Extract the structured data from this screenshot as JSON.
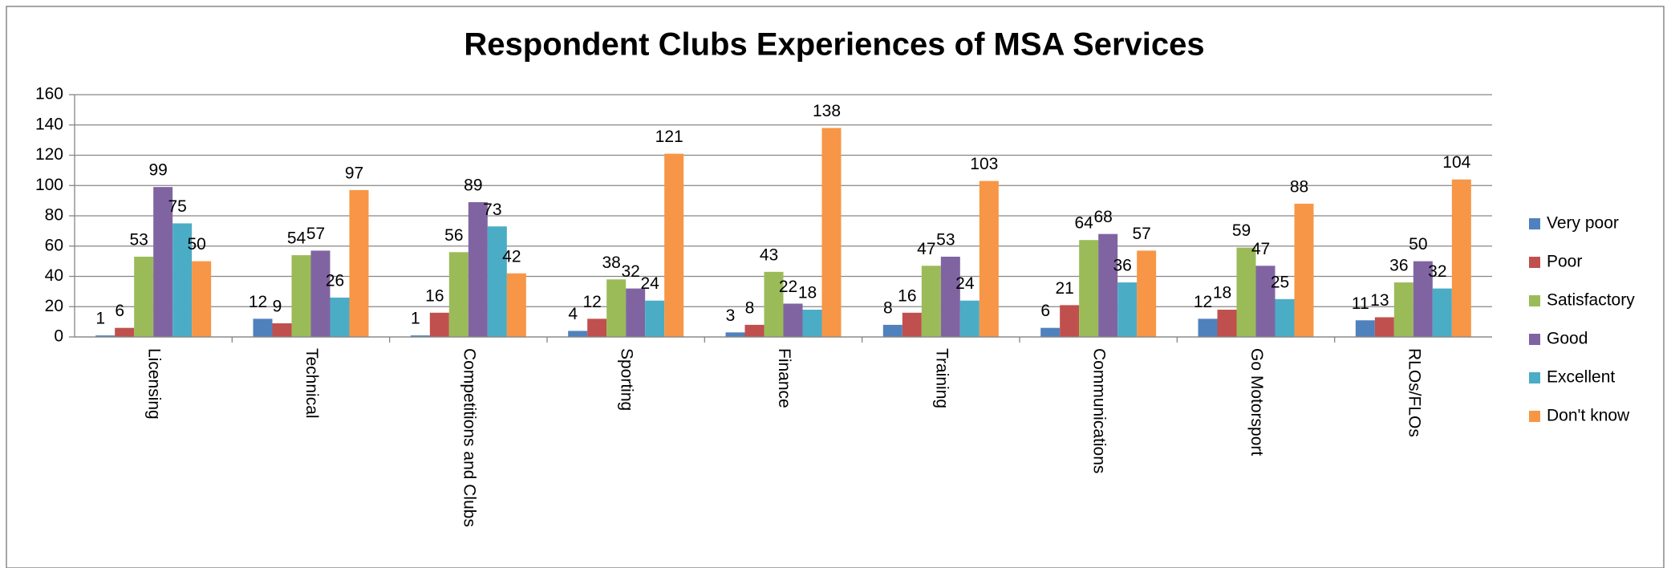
{
  "chart_data": {
    "type": "bar",
    "title": "Respondent Clubs Experiences of MSA Services",
    "categories": [
      "Licensing",
      "Technical",
      "Competitions and Clubs",
      "Sporting",
      "Finance",
      "Training",
      "Communications",
      "Go Motorsport",
      "RLOs/FLOs"
    ],
    "series": [
      {
        "name": "Very poor",
        "color": "#4f81bd",
        "values": [
          1,
          12,
          1,
          4,
          3,
          8,
          6,
          12,
          11
        ]
      },
      {
        "name": "Poor",
        "color": "#c0504d",
        "values": [
          6,
          9,
          16,
          12,
          8,
          16,
          21,
          18,
          13
        ]
      },
      {
        "name": "Satisfactory",
        "color": "#9bbb59",
        "values": [
          53,
          54,
          56,
          38,
          43,
          47,
          64,
          59,
          36
        ]
      },
      {
        "name": "Good",
        "color": "#8064a2",
        "values": [
          99,
          57,
          89,
          32,
          22,
          53,
          68,
          47,
          50
        ]
      },
      {
        "name": "Excellent",
        "color": "#4bacc6",
        "values": [
          75,
          26,
          73,
          24,
          18,
          24,
          36,
          25,
          32
        ]
      },
      {
        "name": "Don't know",
        "color": "#f79646",
        "values": [
          50,
          97,
          42,
          121,
          138,
          103,
          57,
          88,
          104
        ]
      }
    ],
    "ylim": [
      0,
      160
    ],
    "yticks": [
      0,
      20,
      40,
      60,
      80,
      100,
      120,
      140,
      160
    ],
    "grid": true,
    "legend": "right"
  }
}
